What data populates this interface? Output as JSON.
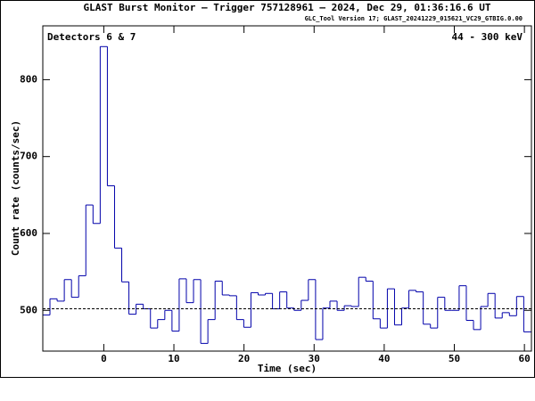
{
  "chart_data": {
    "type": "histogram",
    "title": "GLAST Burst Monitor  –  Trigger 757128961  –  2024, Dec 29, 01:36:16.6 UT",
    "subtitle": "GLC_Tool Version 17; GLAST_20241229_015621_VC29_GTBIG.0.00",
    "annotations": [
      "Detectors 6 & 7",
      "44 - 300 keV"
    ],
    "xlabel": "Time (sec)",
    "ylabel": "Count rate (counts/sec)",
    "color": "#0000aa",
    "bins": [
      -8.704,
      -7.68,
      -6.656,
      -5.632,
      -4.608,
      -3.584,
      -2.56,
      -1.536,
      -0.512,
      0.512,
      1.536,
      2.56,
      3.584,
      4.608,
      5.632,
      6.656,
      7.68,
      8.704,
      9.728,
      10.752,
      11.776,
      12.8,
      13.824,
      14.848,
      15.872,
      16.896,
      17.92,
      18.944,
      19.968,
      20.992,
      22.016,
      23.04,
      24.064,
      25.088,
      26.112,
      27.136,
      28.16,
      29.184,
      30.208,
      31.232,
      32.256,
      33.28,
      34.304,
      35.328,
      36.352,
      37.376,
      38.4,
      39.424,
      40.448,
      41.472,
      42.496,
      43.52,
      44.544,
      45.568,
      46.592,
      47.616,
      48.64,
      49.664,
      50.688,
      51.712,
      52.736,
      53.76,
      54.784,
      55.808,
      56.832,
      57.856,
      58.88,
      59.904,
      60.928
    ],
    "values": [
      494,
      515,
      512,
      540,
      517,
      545,
      637,
      613,
      843,
      662,
      581,
      537,
      495,
      508,
      502,
      477,
      488,
      500,
      473,
      541,
      510,
      540,
      457,
      488,
      538,
      520,
      519,
      488,
      478,
      523,
      520,
      522,
      502,
      524,
      503,
      500,
      513,
      540,
      462,
      503,
      512,
      500,
      506,
      505,
      543,
      538,
      489,
      477,
      528,
      481,
      503,
      526,
      524,
      482,
      477,
      517,
      500,
      500,
      532,
      487,
      475,
      505,
      522,
      490,
      497,
      493,
      518,
      472
    ],
    "background": 502,
    "xlim": [
      -8.7,
      61.0
    ],
    "ylim": [
      447,
      870
    ],
    "xticks": [
      0,
      10,
      20,
      30,
      40,
      50,
      60
    ],
    "yticks": [
      500,
      600,
      700,
      800
    ]
  }
}
